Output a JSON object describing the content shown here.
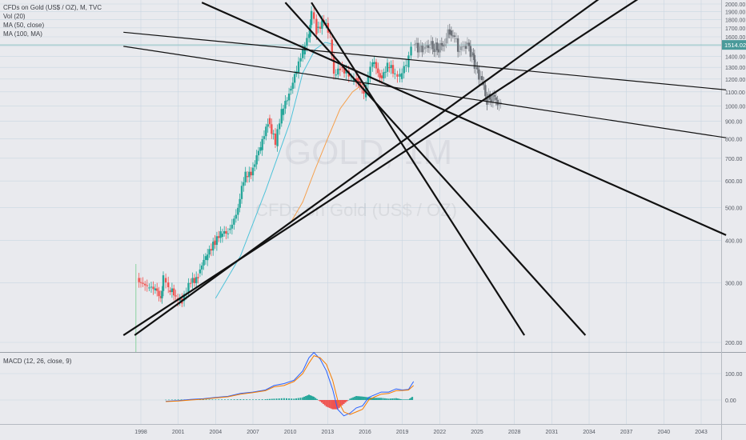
{
  "chart_data": [
    {
      "type": "candlestick",
      "title": "CFDs on Gold (US$ / OZ), M, TVC",
      "watermark": {
        "symbol": "GOLD, 1M",
        "name": "CFDs on Gold (US$ / OZ)"
      },
      "indicators": [
        "Vol (20)",
        "MA (50, close)",
        "MA (100, MA)"
      ],
      "last_price": "1514.02",
      "y_ticks": [
        "2000.00",
        "1900.00",
        "1800.00",
        "1700.00",
        "1600.00",
        "1500.00",
        "1400.00",
        "1300.00",
        "1200.00",
        "1100.00",
        "1000.00",
        "900.00",
        "800.00",
        "700.00",
        "600.00",
        "500.00",
        "400.00",
        "300.00",
        "200.00"
      ],
      "x_ticks": [
        "1998",
        "2001",
        "2004",
        "2007",
        "2010",
        "2013",
        "2016",
        "2019",
        "2022",
        "2025",
        "2028",
        "2031",
        "2034",
        "2037",
        "2040",
        "2043"
      ],
      "price_path": [
        [
          1997.7,
          310
        ],
        [
          1998.0,
          300
        ],
        [
          1998.5,
          290
        ],
        [
          1999.0,
          285
        ],
        [
          1999.6,
          270
        ],
        [
          1999.8,
          310
        ],
        [
          2000.2,
          285
        ],
        [
          2000.8,
          270
        ],
        [
          2001.3,
          265
        ],
        [
          2002.0,
          300
        ],
        [
          2002.6,
          320
        ],
        [
          2003.2,
          350
        ],
        [
          2003.8,
          400
        ],
        [
          2004.4,
          410
        ],
        [
          2005.0,
          430
        ],
        [
          2005.8,
          500
        ],
        [
          2006.4,
          620
        ],
        [
          2007.0,
          660
        ],
        [
          2007.6,
          740
        ],
        [
          2008.2,
          920
        ],
        [
          2008.8,
          760
        ],
        [
          2009.3,
          940
        ],
        [
          2009.9,
          1110
        ],
        [
          2010.5,
          1250
        ],
        [
          2011.0,
          1420
        ],
        [
          2011.5,
          1600
        ],
        [
          2011.7,
          1890
        ],
        [
          2012.1,
          1700
        ],
        [
          2012.7,
          1750
        ],
        [
          2013.2,
          1570
        ],
        [
          2013.5,
          1230
        ],
        [
          2014.0,
          1300
        ],
        [
          2014.5,
          1270
        ],
        [
          2014.9,
          1180
        ],
        [
          2015.3,
          1210
        ],
        [
          2015.9,
          1060
        ],
        [
          2016.6,
          1330
        ],
        [
          2017.2,
          1230
        ],
        [
          2017.8,
          1300
        ],
        [
          2018.4,
          1240
        ],
        [
          2018.8,
          1200
        ],
        [
          2019.3,
          1300
        ],
        [
          2019.7,
          1500
        ]
      ],
      "projected_path": [
        [
          2019.9,
          1510
        ],
        [
          2020.6,
          1470
        ],
        [
          2021.2,
          1510
        ],
        [
          2021.8,
          1470
        ],
        [
          2022.4,
          1530
        ],
        [
          2022.8,
          1670
        ],
        [
          2023.2,
          1580
        ],
        [
          2023.6,
          1460
        ],
        [
          2024.1,
          1520
        ],
        [
          2024.6,
          1430
        ],
        [
          2024.9,
          1300
        ],
        [
          2025.4,
          1180
        ],
        [
          2025.8,
          1040
        ],
        [
          2026.4,
          1060
        ],
        [
          2026.9,
          990
        ]
      ],
      "ma50_path": [
        [
          2004.0,
          270
        ],
        [
          2006.0,
          360
        ],
        [
          2008.0,
          560
        ],
        [
          2010.0,
          900
        ],
        [
          2011.0,
          1250
        ],
        [
          2012.0,
          1470
        ],
        [
          2012.8,
          1540
        ],
        [
          2013.5,
          1520
        ]
      ],
      "ma100_path": [
        [
          2010.0,
          450
        ],
        [
          2011.0,
          520
        ],
        [
          2012.0,
          650
        ],
        [
          2013.0,
          800
        ],
        [
          2014.0,
          980
        ],
        [
          2015.0,
          1100
        ],
        [
          2016.0,
          1170
        ]
      ],
      "trend_lines": [
        {
          "x1": 1996.6,
          "y1": 210,
          "x2": 2045.0,
          "y2": 3060,
          "width": 2.2
        },
        {
          "x1": 1997.5,
          "y1": 210,
          "x2": 2038.0,
          "y2": 2520,
          "width": 2.2
        },
        {
          "x1": 2002.9,
          "y1": 2020,
          "x2": 2045.0,
          "y2": 415,
          "width": 2.2
        },
        {
          "x1": 2009.6,
          "y1": 2020,
          "x2": 2033.7,
          "y2": 210,
          "width": 2.2
        },
        {
          "x1": 2011.7,
          "y1": 2020,
          "x2": 2028.8,
          "y2": 210,
          "width": 2.2
        },
        {
          "x1": 1996.6,
          "y1": 1650,
          "x2": 2045.0,
          "y2": 1115,
          "width": 1.2
        },
        {
          "x1": 1996.6,
          "y1": 1500,
          "x2": 2045.0,
          "y2": 805,
          "width": 1.2
        }
      ],
      "price_line": 1514.02,
      "colors": {
        "up": "#26a69a",
        "down": "#ef5350",
        "ma50": "#4fc3d9",
        "ma100": "#f5a04c",
        "macd": "#2962ff",
        "signal": "#f57c00",
        "grid": "#c9d6e2",
        "axis_text": "#555a63",
        "price_line": "#8fc3c4",
        "price_badge": "#4a9a9a",
        "volume": "#8bd3a0"
      }
    },
    {
      "type": "bar",
      "title": "MACD (12, 26, close, 9)",
      "y_ticks": [
        "100.00",
        "0.00"
      ],
      "x": [
        2000.0,
        2001.0,
        2002.0,
        2003.0,
        2004.0,
        2005.0,
        2006.0,
        2007.0,
        2008.0,
        2008.7,
        2009.5,
        2010.3,
        2011.0,
        2011.5,
        2011.9,
        2012.4,
        2012.9,
        2013.4,
        2013.8,
        2014.3,
        2014.8,
        2015.3,
        2015.8,
        2016.3,
        2016.8,
        2017.3,
        2017.9,
        2018.5,
        2019.0,
        2019.5,
        2019.9
      ],
      "series": [
        {
          "name": "MACD",
          "values": [
            -5,
            -2,
            2,
            5,
            10,
            14,
            25,
            30,
            38,
            55,
            62,
            75,
            110,
            160,
            180,
            155,
            110,
            40,
            -35,
            -60,
            -50,
            -30,
            -22,
            10,
            20,
            30,
            30,
            42,
            38,
            40,
            70
          ]
        },
        {
          "name": "Signal",
          "values": [
            -6,
            -4,
            0,
            3,
            8,
            12,
            22,
            28,
            35,
            50,
            55,
            70,
            100,
            140,
            168,
            160,
            135,
            75,
            0,
            -45,
            -55,
            -45,
            -35,
            0,
            12,
            22,
            25,
            35,
            36,
            38,
            55
          ]
        },
        {
          "name": "Histogram",
          "values": [
            1,
            2,
            2,
            2,
            2,
            2,
            3,
            2,
            3,
            5,
            7,
            5,
            10,
            20,
            12,
            -5,
            -25,
            -35,
            -35,
            -15,
            5,
            15,
            13,
            10,
            8,
            8,
            5,
            7,
            2,
            2,
            15
          ]
        }
      ],
      "ylim": [
        -90,
        200
      ]
    }
  ]
}
